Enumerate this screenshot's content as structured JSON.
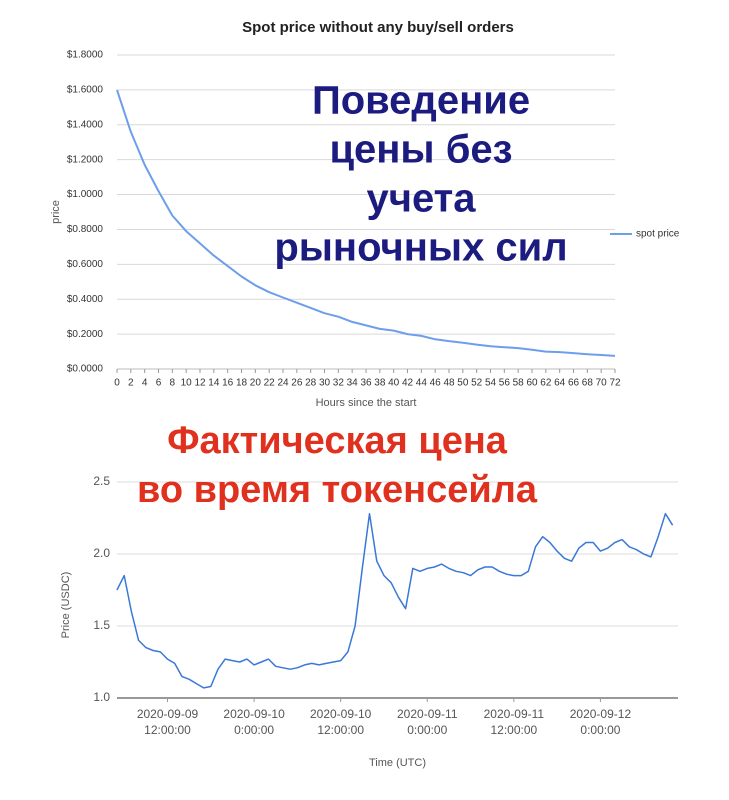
{
  "chart_data": [
    {
      "type": "line",
      "title": "Spot price without any buy/sell orders",
      "ylabel": "price",
      "xlabel": "Hours since the start",
      "x": [
        0,
        2,
        4,
        6,
        8,
        10,
        12,
        14,
        16,
        18,
        20,
        22,
        24,
        26,
        28,
        30,
        32,
        34,
        36,
        38,
        40,
        42,
        44,
        46,
        48,
        50,
        52,
        54,
        56,
        58,
        60,
        62,
        64,
        66,
        68,
        70,
        72
      ],
      "series": [
        {
          "name": "spot price",
          "color": "#6d9eeb",
          "values": [
            1.6,
            1.36,
            1.17,
            1.02,
            0.88,
            0.79,
            0.72,
            0.65,
            0.59,
            0.53,
            0.48,
            0.44,
            0.41,
            0.38,
            0.35,
            0.32,
            0.3,
            0.27,
            0.25,
            0.23,
            0.22,
            0.2,
            0.19,
            0.17,
            0.16,
            0.15,
            0.14,
            0.13,
            0.125,
            0.12,
            0.11,
            0.1,
            0.097,
            0.091,
            0.085,
            0.08,
            0.075
          ]
        }
      ],
      "xlim": [
        0,
        72
      ],
      "xticks": [
        0,
        2,
        4,
        6,
        8,
        10,
        12,
        14,
        16,
        18,
        20,
        22,
        24,
        26,
        28,
        30,
        32,
        34,
        36,
        38,
        40,
        42,
        44,
        46,
        48,
        50,
        52,
        54,
        56,
        58,
        60,
        62,
        64,
        66,
        68,
        70,
        72
      ],
      "ylim": [
        0,
        1.8
      ],
      "yticks": [
        {
          "value": 0,
          "label": "$0.0000"
        },
        {
          "value": 0.2,
          "label": "$0.2000"
        },
        {
          "value": 0.4,
          "label": "$0.4000"
        },
        {
          "value": 0.6,
          "label": "$0.6000"
        },
        {
          "value": 0.8,
          "label": "$0.8000"
        },
        {
          "value": 1,
          "label": "$1.0000"
        },
        {
          "value": 1.2,
          "label": "$1.2000"
        },
        {
          "value": 1.4,
          "label": "$1.4000"
        },
        {
          "value": 1.6,
          "label": "$1.6000"
        },
        {
          "value": 1.8,
          "label": "$1.8000"
        }
      ],
      "grid": true,
      "legend": "right",
      "annotation": {
        "lines": [
          "Поведение",
          "цены без",
          "учета",
          "рыночных сил"
        ],
        "color": "#1b1b80"
      }
    },
    {
      "type": "line",
      "ylabel": "Price (USDC)",
      "xlabel": "Time (UTC)",
      "x": [
        "2020-09-09 05:00",
        "2020-09-09 06:00",
        "2020-09-09 07:00",
        "2020-09-09 08:00",
        "2020-09-09 09:00",
        "2020-09-09 10:00",
        "2020-09-09 11:00",
        "2020-09-09 12:00",
        "2020-09-09 13:00",
        "2020-09-09 14:00",
        "2020-09-09 15:00",
        "2020-09-09 16:00",
        "2020-09-09 17:00",
        "2020-09-09 18:00",
        "2020-09-09 19:00",
        "2020-09-09 20:00",
        "2020-09-09 21:00",
        "2020-09-09 22:00",
        "2020-09-09 23:00",
        "2020-09-10 00:00",
        "2020-09-10 01:00",
        "2020-09-10 02:00",
        "2020-09-10 03:00",
        "2020-09-10 04:00",
        "2020-09-10 05:00",
        "2020-09-10 06:00",
        "2020-09-10 07:00",
        "2020-09-10 08:00",
        "2020-09-10 09:00",
        "2020-09-10 10:00",
        "2020-09-10 11:00",
        "2020-09-10 12:00",
        "2020-09-10 13:00",
        "2020-09-10 14:00",
        "2020-09-10 15:00",
        "2020-09-10 16:00",
        "2020-09-10 17:00",
        "2020-09-10 18:00",
        "2020-09-10 19:00",
        "2020-09-10 20:00",
        "2020-09-10 21:00",
        "2020-09-10 22:00",
        "2020-09-10 23:00",
        "2020-09-11 00:00",
        "2020-09-11 01:00",
        "2020-09-11 02:00",
        "2020-09-11 03:00",
        "2020-09-11 04:00",
        "2020-09-11 05:00",
        "2020-09-11 06:00",
        "2020-09-11 07:00",
        "2020-09-11 08:00",
        "2020-09-11 09:00",
        "2020-09-11 10:00",
        "2020-09-11 11:00",
        "2020-09-11 12:00",
        "2020-09-11 13:00",
        "2020-09-11 14:00",
        "2020-09-11 15:00",
        "2020-09-11 16:00",
        "2020-09-11 17:00",
        "2020-09-11 18:00",
        "2020-09-11 19:00",
        "2020-09-11 20:00",
        "2020-09-11 21:00",
        "2020-09-11 22:00",
        "2020-09-11 23:00",
        "2020-09-12 00:00",
        "2020-09-12 01:00",
        "2020-09-12 02:00",
        "2020-09-12 03:00",
        "2020-09-12 04:00",
        "2020-09-12 05:00",
        "2020-09-12 06:00",
        "2020-09-12 07:00",
        "2020-09-12 08:00",
        "2020-09-12 09:00",
        "2020-09-12 10:00"
      ],
      "series": [
        {
          "name": "Price",
          "color": "#3a78d8",
          "values": [
            1.75,
            1.85,
            1.6,
            1.4,
            1.35,
            1.33,
            1.32,
            1.27,
            1.24,
            1.15,
            1.13,
            1.1,
            1.07,
            1.08,
            1.2,
            1.27,
            1.26,
            1.25,
            1.27,
            1.23,
            1.25,
            1.27,
            1.22,
            1.21,
            1.2,
            1.21,
            1.23,
            1.24,
            1.23,
            1.24,
            1.25,
            1.26,
            1.32,
            1.5,
            1.9,
            2.28,
            1.95,
            1.85,
            1.8,
            1.7,
            1.62,
            1.9,
            1.88,
            1.9,
            1.91,
            1.93,
            1.9,
            1.88,
            1.87,
            1.85,
            1.89,
            1.91,
            1.91,
            1.88,
            1.86,
            1.85,
            1.85,
            1.88,
            2.05,
            2.12,
            2.08,
            2.02,
            1.97,
            1.95,
            2.04,
            2.08,
            2.08,
            2.02,
            2.04,
            2.08,
            2.1,
            2.05,
            2.03,
            2.0,
            1.98,
            2.12,
            2.28,
            2.2
          ]
        }
      ],
      "xlim": [
        "2020-09-09 05:00",
        "2020-09-12 10:45"
      ],
      "xticks": [
        {
          "value": "2020-09-09 12:00",
          "label": "2020-09-09 12:00:00"
        },
        {
          "value": "2020-09-10 00:00",
          "label": "2020-09-10 0:00:00"
        },
        {
          "value": "2020-09-10 12:00",
          "label": "2020-09-10 12:00:00"
        },
        {
          "value": "2020-09-11 00:00",
          "label": "2020-09-11 0:00:00"
        },
        {
          "value": "2020-09-11 12:00",
          "label": "2020-09-11 12:00:00"
        },
        {
          "value": "2020-09-12 00:00",
          "label": "2020-09-12 0:00:00"
        }
      ],
      "ylim": [
        1,
        2.5
      ],
      "yticks": [
        {
          "value": 1,
          "label": "1.0"
        },
        1.5,
        {
          "value": 2,
          "label": "2.0"
        },
        {
          "value": 2.5,
          "label": "2.5"
        }
      ],
      "grid": true,
      "annotation": {
        "lines": [
          "Фактическая цена",
          "во время токенсейла"
        ],
        "color": "#e0301e"
      }
    }
  ]
}
